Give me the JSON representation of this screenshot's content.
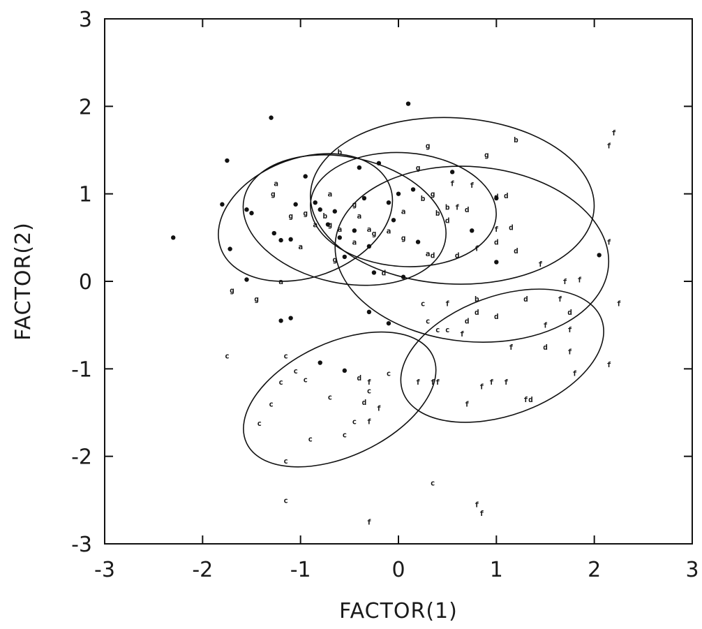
{
  "chart_data": {
    "type": "scatter",
    "xlabel": "FACTOR(1)",
    "ylabel": "FACTOR(2)",
    "xlim": [
      -3,
      3
    ],
    "ylim": [
      -3,
      3
    ],
    "xticks": [
      "-3",
      "-2",
      "-1",
      "0",
      "1",
      "2",
      "3"
    ],
    "yticks": [
      "-3",
      "-2",
      "-1",
      "0",
      "1",
      "2",
      "3"
    ],
    "grid": false,
    "ellipses": [
      {
        "center": [
          -0.95,
          0.73
        ],
        "rx": 0.92,
        "ry": 0.68,
        "angle_deg": 20
      },
      {
        "center": [
          -0.55,
          0.7
        ],
        "rx": 1.05,
        "ry": 0.72,
        "angle_deg": -12
      },
      {
        "center": [
          0.05,
          0.82
        ],
        "rx": 0.95,
        "ry": 0.65,
        "angle_deg": -4
      },
      {
        "center": [
          0.55,
          0.92
        ],
        "rx": 1.45,
        "ry": 0.95,
        "angle_deg": -3
      },
      {
        "center": [
          0.75,
          0.31
        ],
        "rx": 1.4,
        "ry": 1.0,
        "angle_deg": -5
      },
      {
        "center": [
          -0.6,
          -1.35
        ],
        "rx": 1.05,
        "ry": 0.65,
        "angle_deg": 25
      },
      {
        "center": [
          1.06,
          -0.85
        ],
        "rx": 1.08,
        "ry": 0.68,
        "angle_deg": 20
      }
    ],
    "series": [
      {
        "marker": "•",
        "points": [
          [
            -2.3,
            0.5
          ],
          [
            -1.8,
            0.88
          ],
          [
            -1.75,
            1.38
          ],
          [
            -1.72,
            0.37
          ],
          [
            -1.55,
            0.82
          ],
          [
            -1.5,
            0.78
          ],
          [
            -1.3,
            1.87
          ],
          [
            -1.27,
            0.55
          ],
          [
            -1.2,
            0.47
          ],
          [
            -1.1,
            0.48
          ],
          [
            -1.05,
            0.88
          ],
          [
            -0.95,
            1.2
          ],
          [
            -0.85,
            0.9
          ],
          [
            -0.8,
            0.82
          ],
          [
            -0.72,
            0.65
          ],
          [
            -0.65,
            0.8
          ],
          [
            -0.6,
            0.5
          ],
          [
            -0.55,
            0.28
          ],
          [
            -0.45,
            0.58
          ],
          [
            -0.4,
            1.3
          ],
          [
            -0.35,
            0.95
          ],
          [
            -0.3,
            0.4
          ],
          [
            -0.25,
            0.1
          ],
          [
            -0.2,
            1.35
          ],
          [
            -0.1,
            0.9
          ],
          [
            -0.05,
            0.7
          ],
          [
            0.0,
            1.0
          ],
          [
            0.1,
            2.03
          ],
          [
            0.15,
            1.05
          ],
          [
            0.2,
            0.45
          ],
          [
            0.55,
            1.25
          ],
          [
            0.75,
            0.58
          ],
          [
            1.0,
            0.95
          ],
          [
            1.0,
            0.22
          ],
          [
            -1.55,
            0.02
          ],
          [
            -1.2,
            -0.45
          ],
          [
            -0.8,
            -0.93
          ],
          [
            -0.3,
            -0.35
          ],
          [
            -0.55,
            -1.02
          ],
          [
            0.05,
            0.05
          ],
          [
            -0.1,
            -0.48
          ],
          [
            -1.1,
            -0.42
          ],
          [
            2.05,
            0.3
          ]
        ]
      },
      {
        "marker": "a",
        "points": [
          [
            -1.25,
            1.12
          ],
          [
            -0.7,
            1.0
          ],
          [
            -0.4,
            0.75
          ],
          [
            -0.3,
            0.6
          ],
          [
            -0.1,
            0.58
          ],
          [
            0.05,
            0.8
          ],
          [
            -1.0,
            0.4
          ],
          [
            -0.85,
            0.65
          ],
          [
            -0.6,
            0.6
          ],
          [
            -0.45,
            0.45
          ],
          [
            0.3,
            0.32
          ],
          [
            -1.2,
            0.0
          ]
        ]
      },
      {
        "marker": "b",
        "points": [
          [
            -0.6,
            1.48
          ],
          [
            0.5,
            0.85
          ],
          [
            1.2,
            1.62
          ],
          [
            -0.75,
            0.75
          ],
          [
            0.25,
            0.95
          ],
          [
            0.8,
            -0.2
          ],
          [
            0.4,
            0.78
          ]
        ]
      },
      {
        "marker": "c",
        "points": [
          [
            -1.42,
            -1.62
          ],
          [
            -1.3,
            -1.4
          ],
          [
            -1.2,
            -1.15
          ],
          [
            -1.05,
            -1.02
          ],
          [
            -0.95,
            -1.12
          ],
          [
            -0.9,
            -1.8
          ],
          [
            -0.7,
            -1.32
          ],
          [
            -0.55,
            -1.75
          ],
          [
            -0.45,
            -1.6
          ],
          [
            -0.3,
            -1.25
          ],
          [
            -0.1,
            -1.05
          ],
          [
            0.35,
            -2.3
          ],
          [
            -1.15,
            -2.5
          ],
          [
            0.4,
            -0.55
          ],
          [
            -1.75,
            -0.85
          ],
          [
            -1.15,
            -2.05
          ],
          [
            0.3,
            -0.45
          ],
          [
            -1.15,
            -0.85
          ],
          [
            0.25,
            -0.25
          ],
          [
            0.5,
            -0.55
          ]
        ]
      },
      {
        "marker": "d",
        "points": [
          [
            0.35,
            0.3
          ],
          [
            0.5,
            0.7
          ],
          [
            0.7,
            0.82
          ],
          [
            1.0,
            0.97
          ],
          [
            1.1,
            0.98
          ],
          [
            1.15,
            0.62
          ],
          [
            1.2,
            0.35
          ],
          [
            1.0,
            0.45
          ],
          [
            1.3,
            -0.2
          ],
          [
            1.75,
            -0.35
          ],
          [
            1.5,
            -0.75
          ],
          [
            0.7,
            -0.45
          ],
          [
            0.8,
            -0.35
          ],
          [
            1.0,
            -0.4
          ],
          [
            -0.4,
            -1.1
          ],
          [
            -0.35,
            -1.38
          ],
          [
            1.35,
            -1.35
          ],
          [
            -0.15,
            0.1
          ],
          [
            0.6,
            0.3
          ]
        ]
      },
      {
        "marker": "f",
        "points": [
          [
            0.55,
            1.12
          ],
          [
            0.75,
            1.1
          ],
          [
            0.6,
            0.85
          ],
          [
            0.8,
            0.38
          ],
          [
            1.0,
            0.6
          ],
          [
            1.45,
            0.2
          ],
          [
            1.7,
            0.0
          ],
          [
            1.85,
            0.02
          ],
          [
            2.15,
            0.45
          ],
          [
            2.2,
            1.7
          ],
          [
            2.15,
            1.55
          ],
          [
            2.25,
            -0.25
          ],
          [
            1.65,
            -0.2
          ],
          [
            1.5,
            -0.5
          ],
          [
            1.75,
            -0.55
          ],
          [
            0.65,
            -0.6
          ],
          [
            0.35,
            -1.15
          ],
          [
            0.2,
            -1.15
          ],
          [
            0.4,
            -1.15
          ],
          [
            0.7,
            -1.4
          ],
          [
            0.85,
            -1.2
          ],
          [
            1.1,
            -1.15
          ],
          [
            1.3,
            -1.35
          ],
          [
            1.75,
            -0.8
          ],
          [
            1.8,
            -1.05
          ],
          [
            2.15,
            -0.95
          ],
          [
            -0.3,
            -1.15
          ],
          [
            -0.2,
            -1.45
          ],
          [
            -0.3,
            -1.6
          ],
          [
            -0.3,
            -2.75
          ],
          [
            0.8,
            -2.55
          ],
          [
            0.85,
            -2.65
          ],
          [
            0.5,
            -0.25
          ],
          [
            0.95,
            -1.15
          ],
          [
            1.15,
            -0.75
          ]
        ]
      },
      {
        "marker": "g",
        "points": [
          [
            -1.28,
            1.0
          ],
          [
            -1.1,
            0.75
          ],
          [
            -1.7,
            -0.1
          ],
          [
            -1.45,
            -0.2
          ],
          [
            -0.7,
            0.65
          ],
          [
            -0.45,
            0.88
          ],
          [
            -0.25,
            0.55
          ],
          [
            0.05,
            0.5
          ],
          [
            0.2,
            1.3
          ],
          [
            0.3,
            1.55
          ],
          [
            0.9,
            1.45
          ],
          [
            0.35,
            1.0
          ],
          [
            -0.65,
            0.25
          ],
          [
            -0.95,
            0.78
          ]
        ]
      }
    ]
  }
}
